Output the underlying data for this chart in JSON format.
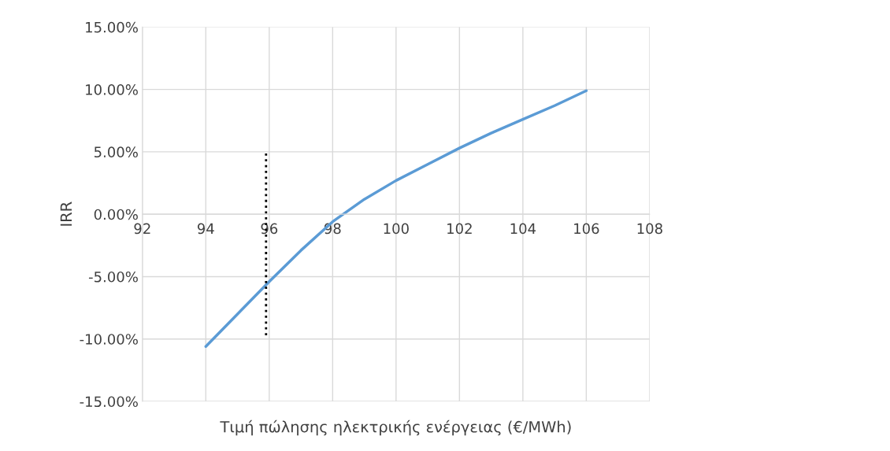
{
  "chart_data": {
    "type": "line",
    "xlabel": "Τιμή πώλησης ηλεκτρικής ενέργειας (€/MWh)",
    "ylabel": "IRR",
    "x": [
      94,
      95,
      96,
      97,
      98,
      99,
      100,
      101,
      102,
      103,
      104,
      105,
      106
    ],
    "series": [
      {
        "color": "#5b9bd5",
        "values": [
          -10.6,
          -8.0,
          -5.4,
          -2.9,
          -0.6,
          1.2,
          2.7,
          4.0,
          5.3,
          6.5,
          7.6,
          8.7,
          9.9
        ]
      },
      {
        "color": "#000000",
        "line_style": "dotted",
        "x": [
          95.9,
          95.9
        ],
        "values": [
          -9.7,
          5.0
        ]
      }
    ],
    "xlim": [
      92,
      108
    ],
    "xticks": [
      92,
      94,
      96,
      98,
      100,
      102,
      104,
      106,
      108
    ],
    "ylim": [
      -15,
      15
    ],
    "yticks": [
      {
        "value": -15,
        "label": "-15.00%"
      },
      {
        "value": -10,
        "label": "-10.00%"
      },
      {
        "value": -5,
        "label": "-5.00%"
      },
      {
        "value": 0,
        "label": "0.00%"
      },
      {
        "value": 5,
        "label": "5.00%"
      },
      {
        "value": 10,
        "label": "10.00%"
      },
      {
        "value": 15,
        "label": "15.00%"
      }
    ],
    "grid": true
  }
}
